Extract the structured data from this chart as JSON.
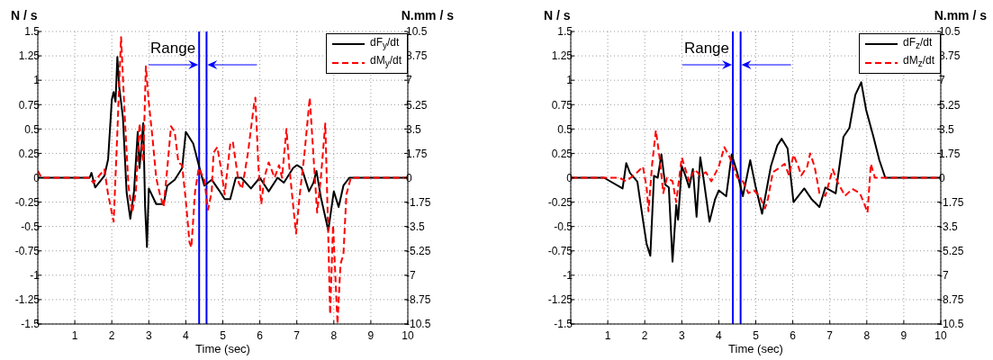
{
  "chart_data": [
    {
      "type": "line",
      "xlabel": "Time (sec)",
      "ylabel": "N / s",
      "y2label": "N.mm / s",
      "xlim": [
        0,
        10
      ],
      "xticks": [
        {
          "value": 0,
          "label": null
        },
        1,
        2,
        3,
        4,
        5,
        6,
        7,
        8,
        9,
        10
      ],
      "ylim": [
        -1.5,
        1.5
      ],
      "yticks": [
        -1.5,
        -1.25,
        -1,
        -0.75,
        -0.5,
        -0.25,
        0,
        0.25,
        0.5,
        0.75,
        1,
        1.25,
        1.5
      ],
      "y2lim": [
        -10.5,
        10.5
      ],
      "y2ticks": [
        -10.5,
        -8.75,
        -7,
        -5.25,
        -3.5,
        -1.75,
        0,
        1.75,
        3.5,
        5.25,
        7,
        8.75,
        10.5
      ],
      "grid": true,
      "legend": "top right",
      "marker": "none",
      "series": [
        {
          "name": "dF$_{y}$/dt",
          "color": "#000000",
          "line_style": "solid",
          "x": [
            0,
            1.4,
            1.45,
            1.55,
            1.8,
            1.9,
            2.0,
            2.05,
            2.1,
            2.15,
            2.2,
            2.3,
            2.4,
            2.5,
            2.6,
            2.7,
            2.75,
            2.85,
            2.9,
            2.95,
            3.0,
            3.2,
            3.4,
            3.5,
            3.7,
            3.9,
            4.0,
            4.2,
            4.35,
            4.5,
            4.7,
            4.9,
            5.05,
            5.2,
            5.35,
            5.5,
            5.76,
            6.0,
            6.24,
            6.48,
            6.65,
            6.9,
            7.0,
            7.13,
            7.33,
            7.45,
            7.53,
            7.65,
            7.85,
            8.0,
            8.13,
            8.26,
            8.42,
            10
          ],
          "values": [
            0,
            0,
            0.05,
            -0.1,
            0.02,
            0.19,
            0.8,
            0.88,
            0.78,
            1.24,
            0.93,
            0.62,
            -0.15,
            -0.42,
            -0.14,
            0.47,
            0.1,
            0.56,
            -0.3,
            -0.71,
            -0.11,
            -0.27,
            -0.27,
            -0.08,
            -0.02,
            0.1,
            0.47,
            0.35,
            0.13,
            -0.08,
            -0.02,
            -0.13,
            -0.22,
            -0.22,
            0,
            0,
            -0.11,
            0,
            -0.14,
            0,
            -0.05,
            0.1,
            0.13,
            0.1,
            -0.14,
            -0.05,
            0.07,
            -0.2,
            -0.54,
            -0.14,
            -0.3,
            -0.08,
            0,
            0
          ]
        },
        {
          "name": "dM$_{y}$/dt",
          "color": "#ff0000",
          "line_style": "dashed",
          "axis": "y2",
          "x": [
            0,
            0.1,
            1.4,
            1.5,
            1.8,
            1.9,
            2.05,
            2.15,
            2.25,
            2.35,
            2.45,
            2.55,
            2.65,
            2.75,
            2.85,
            2.92,
            3.0,
            3.1,
            3.2,
            3.3,
            3.4,
            3.5,
            3.6,
            3.7,
            3.8,
            3.9,
            4.0,
            4.1,
            4.15,
            4.25,
            4.35,
            4.5,
            4.6,
            4.7,
            4.75,
            4.85,
            4.95,
            5.05,
            5.2,
            5.27,
            5.43,
            5.52,
            5.68,
            5.84,
            5.88,
            5.96,
            6.04,
            6.12,
            6.24,
            6.4,
            6.52,
            6.6,
            6.72,
            6.8,
            6.92,
            6.98,
            7.08,
            7.2,
            7.35,
            7.45,
            7.55,
            7.65,
            7.77,
            7.85,
            7.9,
            7.98,
            8.1,
            8.18,
            8.26,
            8.34,
            8.46,
            10
          ],
          "values": [
            0.5,
            0,
            0,
            -0.36,
            0.6,
            -1.2,
            -3.15,
            3.3,
            10.1,
            4.4,
            -0.6,
            -2.5,
            -1,
            3.9,
            1.1,
            8,
            5.4,
            2.85,
            0,
            -1.2,
            -2.1,
            0.7,
            3.7,
            3.3,
            1.1,
            0.9,
            -1.65,
            -4.65,
            -5,
            -1,
            0.7,
            -0.15,
            -2.3,
            -1,
            1.8,
            2.2,
            0.7,
            -1.2,
            2.4,
            2.6,
            -0.36,
            -0.8,
            1.8,
            5.2,
            5.75,
            0.9,
            -1.9,
            0,
            1.1,
            0,
            0.9,
            0,
            3.5,
            0.7,
            -2.5,
            -4,
            -1.2,
            1.55,
            5.75,
            1.55,
            -2.5,
            0,
            3.9,
            -4.2,
            -9.8,
            -3.4,
            -10.5,
            -6.2,
            -5.5,
            -1.2,
            0,
            0
          ]
        }
      ],
      "ref_lines": [
        {
          "axis": "x",
          "value": 4.36,
          "label": "Range",
          "color": "#0000ff"
        },
        {
          "axis": "x",
          "value": 4.56,
          "color": "#0000ff"
        }
      ]
    },
    {
      "type": "line",
      "xlabel": "Time (sec)",
      "ylabel": "N / s",
      "y2label": "N.mm / s",
      "xlim": [
        0,
        10
      ],
      "xticks": [
        {
          "value": 0,
          "label": null
        },
        1,
        2,
        3,
        4,
        5,
        6,
        7,
        8,
        9,
        10
      ],
      "ylim": [
        -1.5,
        1.5
      ],
      "yticks": [
        -1.5,
        -1.25,
        -1,
        -0.75,
        -0.5,
        -0.25,
        0,
        0.25,
        0.5,
        0.75,
        1,
        1.25,
        1.5
      ],
      "y2lim": [
        -10.5,
        10.5
      ],
      "y2ticks": [
        -10.5,
        -8.75,
        -7,
        -5.25,
        -3.5,
        -1.75,
        0,
        1.75,
        3.5,
        5.25,
        7,
        8.75,
        10.5
      ],
      "grid": true,
      "legend": "top right",
      "marker": "none",
      "series": [
        {
          "name": "dF$_{z}$/dt",
          "color": "#000000",
          "line_style": "solid",
          "x": [
            0,
            0.9,
            1.4,
            1.5,
            1.6,
            1.8,
            1.95,
            2.05,
            2.15,
            2.25,
            2.35,
            2.45,
            2.55,
            2.65,
            2.75,
            2.85,
            2.9,
            3.0,
            3.1,
            3.2,
            3.3,
            3.4,
            3.5,
            3.6,
            3.75,
            3.9,
            4.0,
            4.2,
            4.35,
            4.5,
            4.65,
            4.85,
            5.0,
            5.17,
            5.41,
            5.58,
            5.7,
            5.86,
            6.02,
            6.31,
            6.51,
            6.72,
            6.88,
            7.16,
            7.37,
            7.53,
            7.69,
            7.85,
            7.98,
            8.18,
            8.34,
            8.5,
            10
          ],
          "values": [
            0,
            0,
            -0.11,
            0.15,
            0.05,
            -0.04,
            -0.43,
            -0.68,
            -0.8,
            0.02,
            0,
            0.24,
            -0.07,
            -0.1,
            -0.86,
            -0.28,
            -0.43,
            0.12,
            0.02,
            -0.1,
            0.09,
            -0.4,
            0.21,
            -0.04,
            -0.45,
            -0.22,
            -0.13,
            -0.19,
            0.24,
            0.05,
            -0.19,
            0.18,
            -0.1,
            -0.37,
            0.12,
            0.33,
            0.4,
            0.3,
            -0.25,
            -0.11,
            -0.22,
            -0.3,
            -0.1,
            -0.16,
            0.42,
            0.51,
            0.85,
            0.98,
            0.7,
            0.42,
            0.18,
            0,
            0
          ]
        },
        {
          "name": "dM$_{z}$/dt",
          "color": "#ff0000",
          "line_style": "dashed",
          "axis": "y2",
          "x": [
            0,
            1.3,
            1.5,
            1.8,
            1.95,
            2.05,
            2.1,
            2.2,
            2.3,
            2.4,
            2.5,
            2.6,
            2.75,
            2.85,
            3.0,
            3.1,
            3.2,
            3.35,
            3.5,
            3.65,
            3.8,
            4.0,
            4.15,
            4.3,
            4.5,
            4.65,
            4.8,
            4.95,
            5.1,
            5.25,
            5.33,
            5.46,
            5.58,
            5.78,
            5.9,
            6.02,
            6.15,
            6.23,
            6.39,
            6.47,
            6.59,
            6.72,
            6.88,
            7.08,
            7.2,
            7.41,
            7.61,
            7.81,
            7.93,
            8.02,
            8.11,
            8.22,
            10
          ],
          "values": [
            0,
            0,
            -0.25,
            0.4,
            0.8,
            -0.7,
            -2.4,
            1,
            3.4,
            1.45,
            -1.1,
            0,
            -0.25,
            -1.75,
            1.45,
            0.6,
            -0.25,
            0.6,
            0.17,
            0.4,
            -0.25,
            0.8,
            2.2,
            1.45,
            0,
            -0.25,
            -1.1,
            -0.9,
            -1.3,
            -2.2,
            -1.5,
            0.4,
            0.6,
            1,
            0.17,
            1.65,
            0.8,
            0.17,
            0.8,
            1.75,
            0.8,
            -1.1,
            -1.3,
            0.6,
            -0.25,
            -1.3,
            -0.8,
            -1.1,
            -1.85,
            -2.5,
            1,
            0,
            0
          ]
        }
      ],
      "ref_lines": [
        {
          "axis": "x",
          "value": 4.38,
          "label": "Range",
          "color": "#0000ff"
        },
        {
          "axis": "x",
          "value": 4.59,
          "color": "#0000ff"
        }
      ]
    }
  ]
}
